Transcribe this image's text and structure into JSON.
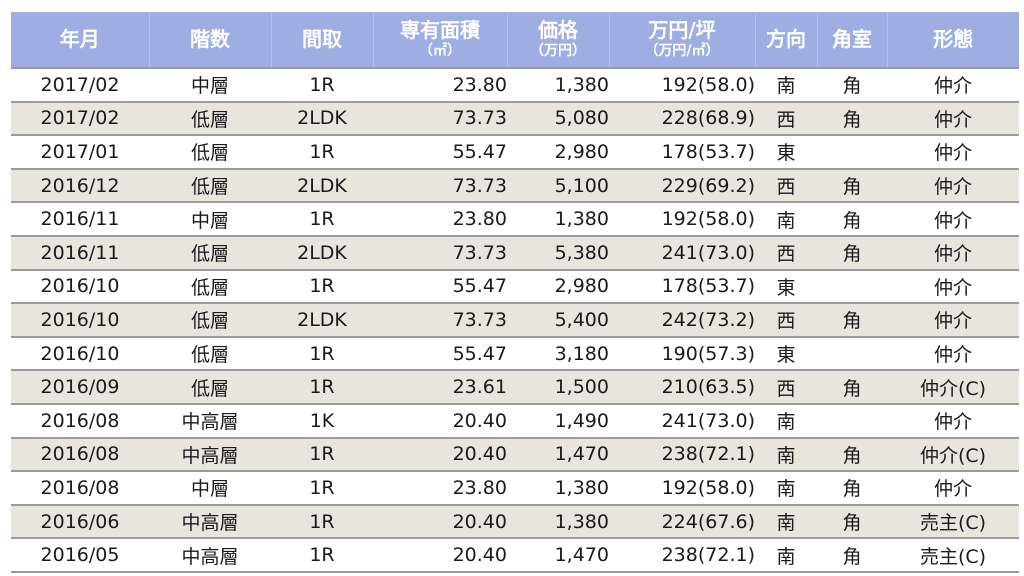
{
  "headers": {
    "date": {
      "main": "年月",
      "sub": ""
    },
    "floor": {
      "main": "階数",
      "sub": ""
    },
    "layout": {
      "main": "間取",
      "sub": ""
    },
    "area": {
      "main": "専有面積",
      "sub": "（㎡）"
    },
    "price": {
      "main": "価格",
      "sub": "（万円）"
    },
    "unit_price": {
      "main": "万円/坪",
      "sub": "（万円/㎡）"
    },
    "direction": {
      "main": "方向",
      "sub": ""
    },
    "corner": {
      "main": "角室",
      "sub": ""
    },
    "type": {
      "main": "形態",
      "sub": ""
    }
  },
  "rows": [
    {
      "date": "2017/02",
      "floor": "中層",
      "layout": "1R",
      "area": "23.80",
      "price": "1,380",
      "unit_price": "192(58.0)",
      "direction": "南",
      "corner": "角",
      "type": "仲介"
    },
    {
      "date": "2017/02",
      "floor": "低層",
      "layout": "2LDK",
      "area": "73.73",
      "price": "5,080",
      "unit_price": "228(68.9)",
      "direction": "西",
      "corner": "角",
      "type": "仲介"
    },
    {
      "date": "2017/01",
      "floor": "低層",
      "layout": "1R",
      "area": "55.47",
      "price": "2,980",
      "unit_price": "178(53.7)",
      "direction": "東",
      "corner": "",
      "type": "仲介"
    },
    {
      "date": "2016/12",
      "floor": "低層",
      "layout": "2LDK",
      "area": "73.73",
      "price": "5,100",
      "unit_price": "229(69.2)",
      "direction": "西",
      "corner": "角",
      "type": "仲介"
    },
    {
      "date": "2016/11",
      "floor": "中層",
      "layout": "1R",
      "area": "23.80",
      "price": "1,380",
      "unit_price": "192(58.0)",
      "direction": "南",
      "corner": "角",
      "type": "仲介"
    },
    {
      "date": "2016/11",
      "floor": "低層",
      "layout": "2LDK",
      "area": "73.73",
      "price": "5,380",
      "unit_price": "241(73.0)",
      "direction": "西",
      "corner": "角",
      "type": "仲介"
    },
    {
      "date": "2016/10",
      "floor": "低層",
      "layout": "1R",
      "area": "55.47",
      "price": "2,980",
      "unit_price": "178(53.7)",
      "direction": "東",
      "corner": "",
      "type": "仲介"
    },
    {
      "date": "2016/10",
      "floor": "低層",
      "layout": "2LDK",
      "area": "73.73",
      "price": "5,400",
      "unit_price": "242(73.2)",
      "direction": "西",
      "corner": "角",
      "type": "仲介"
    },
    {
      "date": "2016/10",
      "floor": "低層",
      "layout": "1R",
      "area": "55.47",
      "price": "3,180",
      "unit_price": "190(57.3)",
      "direction": "東",
      "corner": "",
      "type": "仲介"
    },
    {
      "date": "2016/09",
      "floor": "低層",
      "layout": "1R",
      "area": "23.61",
      "price": "1,500",
      "unit_price": "210(63.5)",
      "direction": "西",
      "corner": "角",
      "type": "仲介(C)"
    },
    {
      "date": "2016/08",
      "floor": "中高層",
      "layout": "1K",
      "area": "20.40",
      "price": "1,490",
      "unit_price": "241(73.0)",
      "direction": "南",
      "corner": "",
      "type": "仲介"
    },
    {
      "date": "2016/08",
      "floor": "中高層",
      "layout": "1R",
      "area": "20.40",
      "price": "1,470",
      "unit_price": "238(72.1)",
      "direction": "南",
      "corner": "角",
      "type": "仲介(C)"
    },
    {
      "date": "2016/08",
      "floor": "中層",
      "layout": "1R",
      "area": "23.80",
      "price": "1,380",
      "unit_price": "192(58.0)",
      "direction": "南",
      "corner": "角",
      "type": "仲介"
    },
    {
      "date": "2016/06",
      "floor": "中高層",
      "layout": "1R",
      "area": "20.40",
      "price": "1,380",
      "unit_price": "224(67.6)",
      "direction": "南",
      "corner": "角",
      "type": "売主(C)"
    },
    {
      "date": "2016/05",
      "floor": "中高層",
      "layout": "1R",
      "area": "20.40",
      "price": "1,470",
      "unit_price": "238(72.1)",
      "direction": "南",
      "corner": "角",
      "type": "売主(C)"
    }
  ]
}
